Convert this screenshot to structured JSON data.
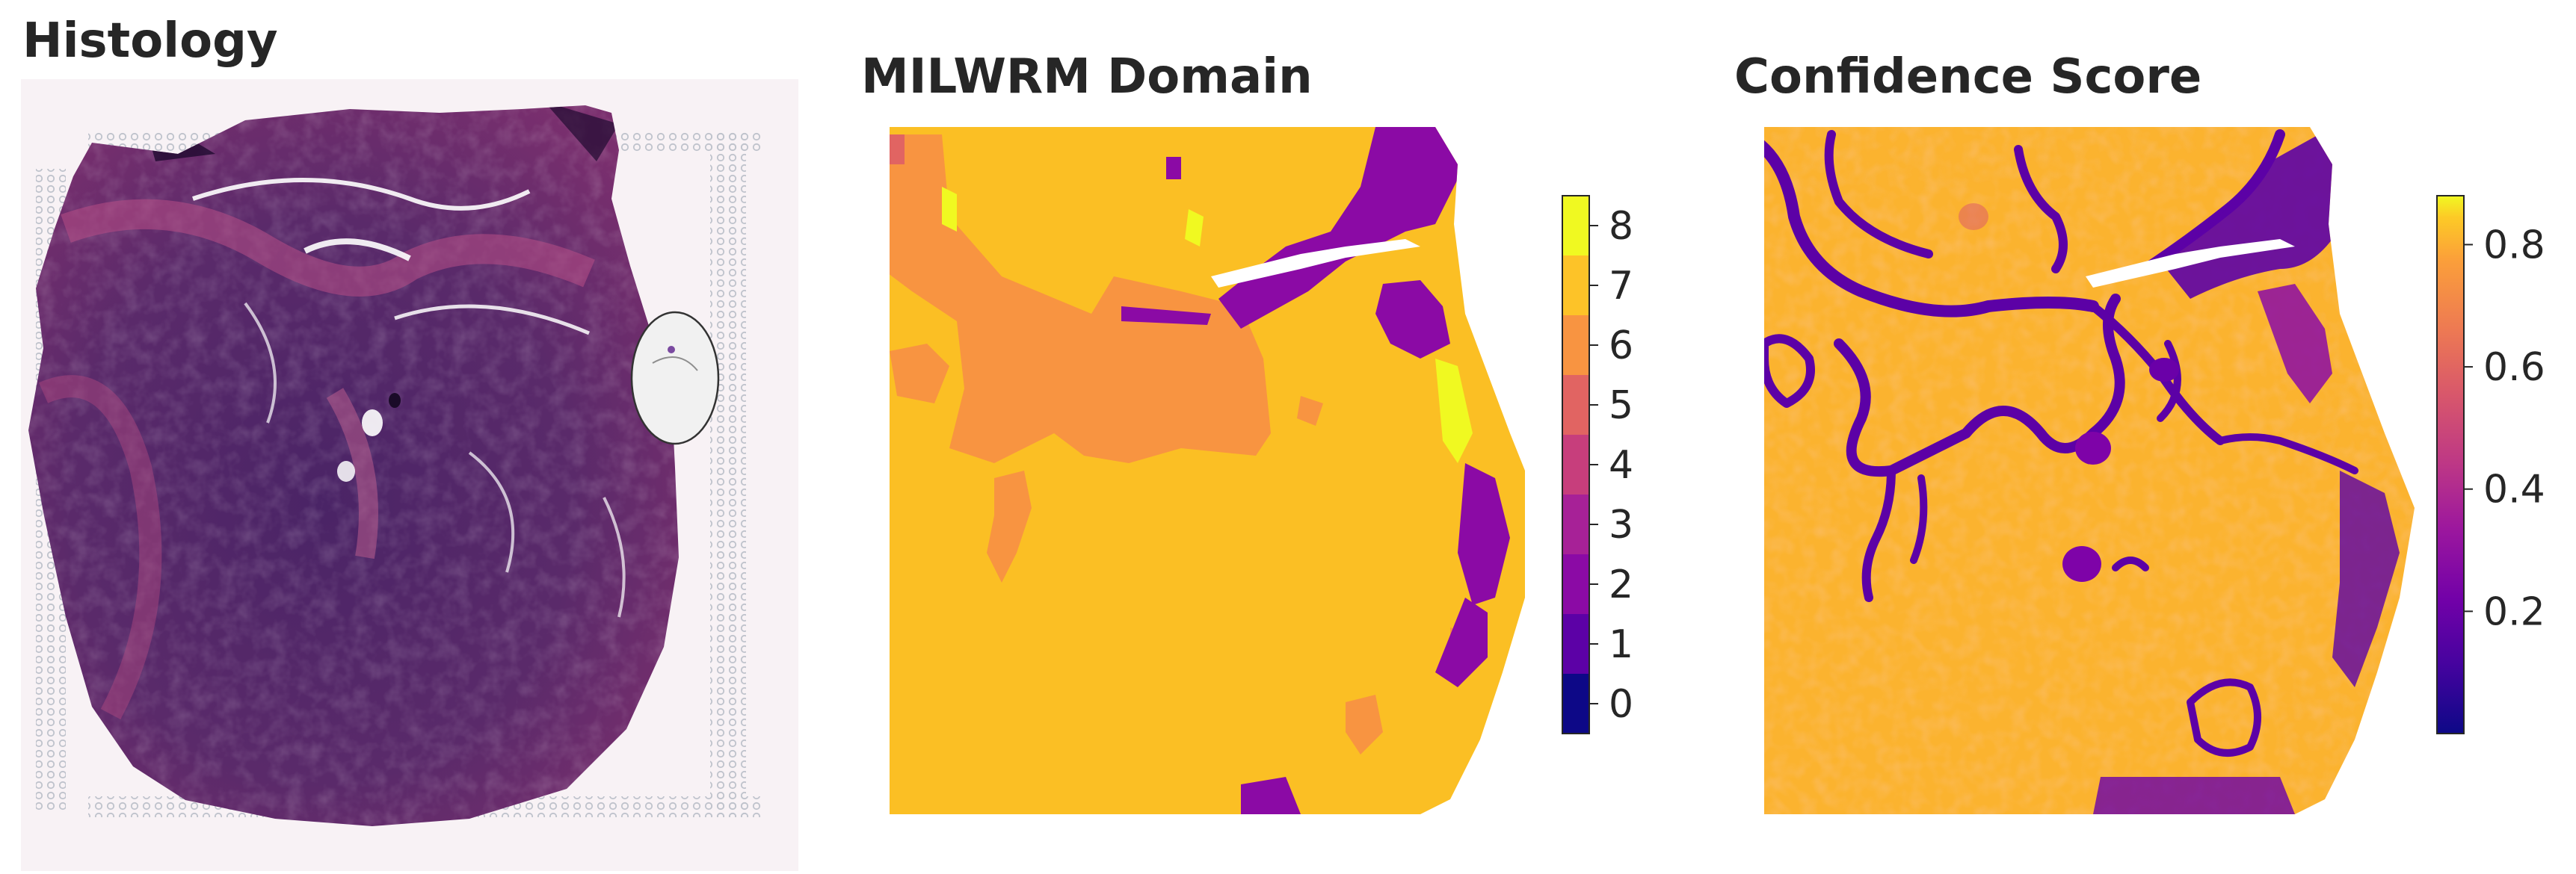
{
  "panels": [
    {
      "id": "histology",
      "title": "Histology"
    },
    {
      "id": "milwrm-domain",
      "title": "MILWRM Domain",
      "colorbar": {
        "colormap": "plasma",
        "type": "discrete",
        "ticks": [
          "0",
          "1",
          "2",
          "3",
          "4",
          "5",
          "6",
          "7",
          "8"
        ],
        "range": [
          0,
          8
        ]
      }
    },
    {
      "id": "confidence-score",
      "title": "Confidence Score",
      "colorbar": {
        "colormap": "plasma",
        "type": "continuous",
        "ticks": [
          "0.2",
          "0.4",
          "0.6",
          "0.8"
        ],
        "tick_values": [
          0.2,
          0.4,
          0.6,
          0.8
        ],
        "range": [
          0.0,
          0.88
        ]
      }
    }
  ],
  "colors": {
    "tissue": "#5a2a6a",
    "tissue_dark": "#3b1450",
    "tissue_pink": "#b0487a",
    "background": "#f7f1f4",
    "spot_outline": "#bfc3cc"
  }
}
